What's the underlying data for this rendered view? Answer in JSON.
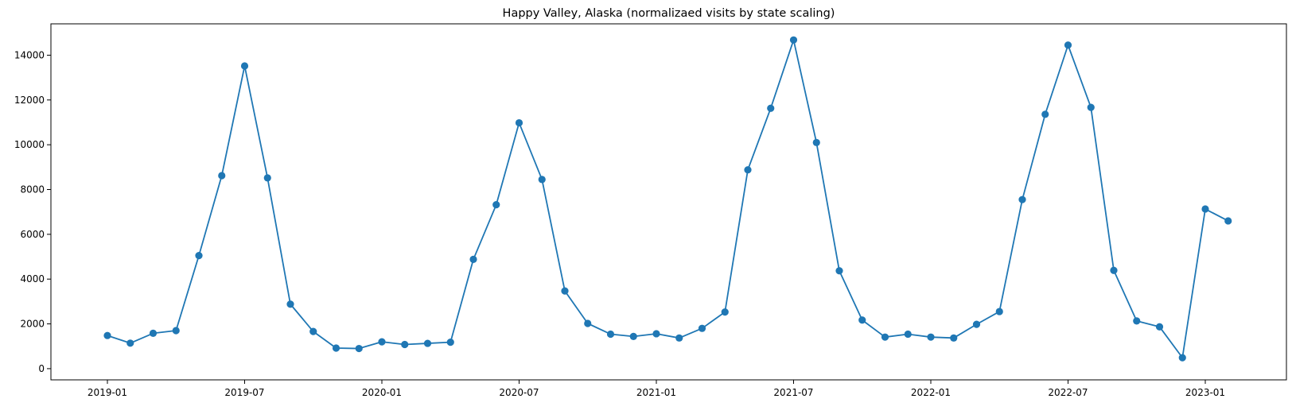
{
  "chart_data": {
    "type": "line",
    "title": "Happy Valley, Alaska (normalizaed visits by state scaling)",
    "xlabel": "",
    "ylabel": "",
    "x_axis_type": "date",
    "x": [
      "2019-01",
      "2019-02",
      "2019-03",
      "2019-04",
      "2019-05",
      "2019-06",
      "2019-07",
      "2019-08",
      "2019-09",
      "2019-10",
      "2019-11",
      "2019-12",
      "2020-01",
      "2020-02",
      "2020-03",
      "2020-04",
      "2020-05",
      "2020-06",
      "2020-07",
      "2020-08",
      "2020-09",
      "2020-10",
      "2020-11",
      "2020-12",
      "2021-01",
      "2021-02",
      "2021-03",
      "2021-04",
      "2021-05",
      "2021-06",
      "2021-07",
      "2021-08",
      "2021-09",
      "2021-10",
      "2021-11",
      "2021-12",
      "2022-01",
      "2022-02",
      "2022-03",
      "2022-04",
      "2022-05",
      "2022-06",
      "2022-07",
      "2022-08",
      "2022-09",
      "2022-10",
      "2022-11",
      "2022-12",
      "2023-01",
      "2023-02"
    ],
    "series": [
      {
        "color": "#1f77b4",
        "marker": "circle",
        "values": [
          1480,
          1140,
          1580,
          1700,
          5050,
          8620,
          13520,
          8520,
          2880,
          1660,
          920,
          900,
          1200,
          1080,
          1130,
          1180,
          4880,
          7320,
          10980,
          8450,
          3470,
          2020,
          1540,
          1440,
          1560,
          1370,
          1800,
          2530,
          8880,
          11630,
          14680,
          10100,
          4370,
          2170,
          1410,
          1540,
          1410,
          1370,
          1980,
          2550,
          7550,
          11360,
          14450,
          11670,
          4390,
          2130,
          1870,
          490,
          7130,
          6600
        ]
      }
    ],
    "ylim": [
      -500,
      15400
    ],
    "yticks": [
      "0",
      "2000",
      "4000",
      "6000",
      "8000",
      "10000",
      "12000",
      "14000"
    ],
    "xticks": [
      "2019-01",
      "2019-07",
      "2020-01",
      "2020-07",
      "2021-01",
      "2021-07",
      "2022-01",
      "2022-07",
      "2023-01"
    ],
    "grid": false,
    "legend": "none"
  }
}
